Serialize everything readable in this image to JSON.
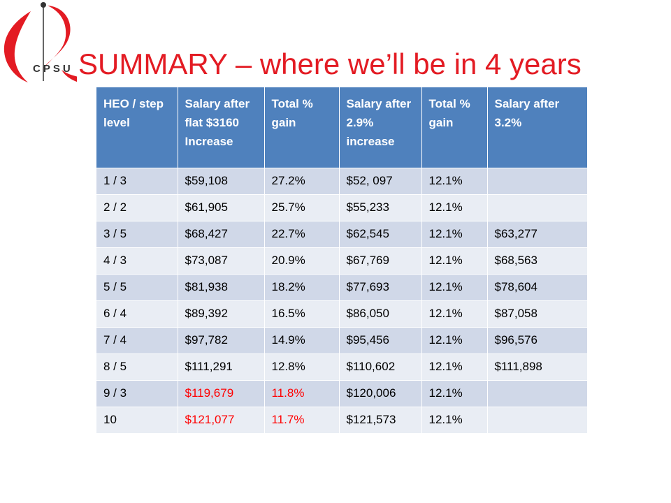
{
  "logo": {
    "text": "CPSU",
    "red": "#e31b23",
    "dark": "#333333"
  },
  "title": {
    "text": "SUMMARY – where we’ll be in 4 years",
    "color": "#e31b23"
  },
  "table": {
    "header_bg": "#4f81bd",
    "highlight_color": "#ff0000",
    "columns": [
      "HEO / step level",
      "Salary after flat $3160 Increase",
      "Total % gain",
      "Salary after 2.9% increase",
      "Total % gain",
      "Salary after 3.2%"
    ],
    "rows": [
      {
        "cells": [
          "1 / 3",
          "$59,108",
          "27.2%",
          "$52, 097",
          "12.1%",
          ""
        ],
        "highlight": []
      },
      {
        "cells": [
          "2 / 2",
          "$61,905",
          "25.7%",
          "$55,233",
          "12.1%",
          ""
        ],
        "highlight": []
      },
      {
        "cells": [
          "3 / 5",
          "$68,427",
          "22.7%",
          "$62,545",
          "12.1%",
          "$63,277"
        ],
        "highlight": []
      },
      {
        "cells": [
          "4 / 3",
          "$73,087",
          "20.9%",
          "$67,769",
          "12.1%",
          "$68,563"
        ],
        "highlight": []
      },
      {
        "cells": [
          "5 / 5",
          "$81,938",
          "18.2%",
          "$77,693",
          "12.1%",
          "$78,604"
        ],
        "highlight": []
      },
      {
        "cells": [
          "6 / 4",
          "$89,392",
          "16.5%",
          "$86,050",
          "12.1%",
          "$87,058"
        ],
        "highlight": []
      },
      {
        "cells": [
          "7 / 4",
          "$97,782",
          "14.9%",
          "$95,456",
          "12.1%",
          "$96,576"
        ],
        "highlight": []
      },
      {
        "cells": [
          "8 / 5",
          "$111,291",
          "12.8%",
          "$110,602",
          "12.1%",
          "$111,898"
        ],
        "highlight": []
      },
      {
        "cells": [
          "9 / 3",
          "$119,679",
          "11.8%",
          "$120,006",
          "12.1%",
          ""
        ],
        "highlight": [
          1,
          2
        ]
      },
      {
        "cells": [
          "10",
          "$121,077",
          "11.7%",
          "$121,573",
          "12.1%",
          ""
        ],
        "highlight": [
          1,
          2
        ]
      }
    ]
  }
}
